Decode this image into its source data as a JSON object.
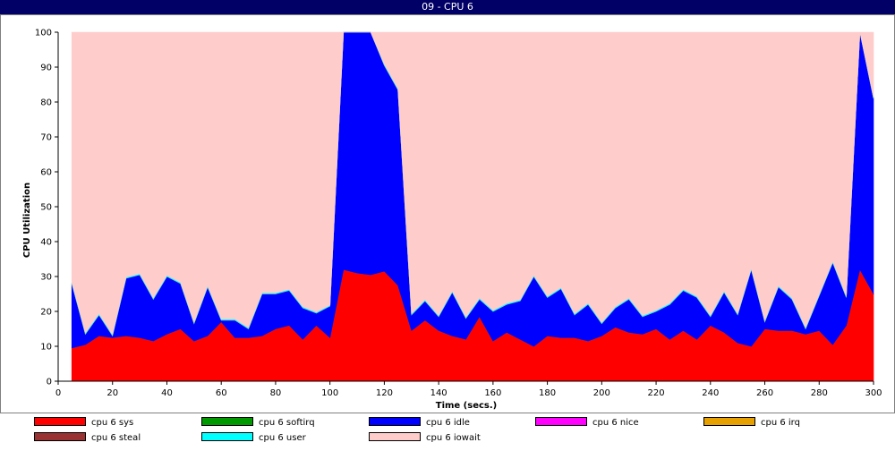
{
  "window": {
    "title": "09 - CPU 6"
  },
  "chart_data": {
    "type": "area",
    "stacked": true,
    "title": "09 - CPU 6",
    "xlabel": "Time (secs.)",
    "ylabel": "CPU Utilization",
    "xlim": [
      0,
      300
    ],
    "ylim": [
      0,
      100
    ],
    "x_ticks": [
      0,
      20,
      40,
      60,
      80,
      100,
      120,
      140,
      160,
      180,
      200,
      220,
      240,
      260,
      280,
      300
    ],
    "y_ticks": [
      0,
      10,
      20,
      30,
      40,
      50,
      60,
      70,
      80,
      90,
      100
    ],
    "legend_position": "bottom",
    "x": [
      5,
      10,
      15,
      20,
      25,
      30,
      35,
      40,
      45,
      50,
      55,
      60,
      65,
      70,
      75,
      80,
      85,
      90,
      95,
      100,
      105,
      110,
      115,
      120,
      125,
      130,
      135,
      140,
      145,
      150,
      155,
      160,
      165,
      170,
      175,
      180,
      185,
      190,
      195,
      200,
      205,
      210,
      215,
      220,
      225,
      230,
      235,
      240,
      245,
      250,
      255,
      260,
      265,
      270,
      275,
      280,
      285,
      290,
      295,
      300
    ],
    "series": [
      {
        "name": "cpu 6 sys",
        "color": "#ff0000",
        "values": [
          9.5,
          10.5,
          13,
          12.5,
          13,
          12.5,
          11.5,
          13.5,
          15,
          11.5,
          13,
          17,
          12.5,
          12.5,
          13,
          15,
          16,
          12,
          16,
          12.5,
          32,
          31,
          30.5,
          31.5,
          27.5,
          14.5,
          17.5,
          14.5,
          13,
          12,
          18.5,
          11.5,
          14,
          12,
          10,
          13,
          12.5,
          12.5,
          11.5,
          13,
          15.5,
          14,
          13.5,
          15,
          12,
          14.5,
          12,
          16,
          14,
          11,
          10,
          15,
          14.5,
          14.5,
          13.5,
          14.5,
          10.5,
          16,
          32,
          25
        ]
      },
      {
        "name": "cpu 6 softirq",
        "color": "#009900",
        "values": [
          0,
          0,
          0,
          0,
          0,
          0,
          0,
          0,
          0,
          0,
          0,
          0,
          0,
          0,
          0,
          0,
          0,
          0,
          0,
          0,
          0,
          0,
          0,
          0,
          0,
          0,
          0,
          0,
          0,
          0,
          0,
          0,
          0,
          0,
          0,
          0,
          0,
          0,
          0,
          0,
          0,
          0,
          0,
          0,
          0,
          0,
          0,
          0,
          0,
          0,
          0,
          0,
          0,
          0,
          0,
          0,
          0,
          0,
          0,
          0
        ]
      },
      {
        "name": "cpu 6 idle",
        "color": "#0000ff",
        "values": [
          18.5,
          3,
          6,
          0.5,
          16.5,
          18,
          12,
          16.5,
          13,
          5,
          14,
          0.5,
          5,
          2.5,
          12,
          10,
          10,
          9,
          3.5,
          9,
          68,
          69,
          69.5,
          59,
          56,
          4.5,
          5.5,
          4,
          12.5,
          6,
          5,
          8.5,
          8,
          11,
          20,
          11,
          14,
          6.5,
          10.5,
          3.5,
          5.5,
          9.5,
          5,
          5,
          10,
          11.5,
          12,
          2.5,
          11.5,
          8,
          22,
          2,
          12.5,
          9,
          1.5,
          10,
          23.5,
          8,
          68,
          56
        ]
      },
      {
        "name": "cpu 6 nice",
        "color": "#ff00ff",
        "values": [
          0,
          0,
          0,
          0,
          0,
          0,
          0,
          0,
          0,
          0,
          0,
          0,
          0,
          0,
          0,
          0,
          0,
          0,
          0,
          0,
          0,
          0,
          0,
          0,
          0,
          0,
          0,
          0,
          0,
          0,
          0,
          0,
          0,
          0,
          0,
          0,
          0,
          0,
          0,
          0,
          0,
          0,
          0,
          0,
          0,
          0,
          0,
          0,
          0,
          0,
          0,
          0,
          0,
          0,
          0,
          0,
          0,
          0,
          0,
          0
        ]
      },
      {
        "name": "cpu 6 irq",
        "color": "#e6a000",
        "values": [
          0,
          0,
          0,
          0,
          0,
          0,
          0,
          0,
          0,
          0,
          0,
          0,
          0,
          0,
          0,
          0,
          0,
          0,
          0,
          0,
          0,
          0,
          0,
          0,
          0,
          0,
          0,
          0,
          0,
          0,
          0,
          0,
          0,
          0,
          0,
          0,
          0,
          0,
          0,
          0,
          0,
          0,
          0,
          0,
          0,
          0,
          0,
          0,
          0,
          0,
          0,
          0,
          0,
          0,
          0,
          0,
          0,
          0,
          0,
          0
        ]
      },
      {
        "name": "cpu 6 steal",
        "color": "#993333",
        "values": [
          0,
          0,
          0,
          0,
          0,
          0,
          0,
          0,
          0,
          0,
          0,
          0,
          0,
          0,
          0,
          0,
          0,
          0,
          0,
          0,
          0,
          0,
          0,
          0,
          0,
          0,
          0,
          0,
          0,
          0,
          0,
          0,
          0,
          0,
          0,
          0,
          0,
          0,
          0,
          0,
          0,
          0,
          0,
          0,
          0,
          0,
          0,
          0,
          0,
          0,
          0,
          0,
          0,
          0,
          0,
          0,
          0,
          0,
          0,
          0
        ]
      },
      {
        "name": "cpu 6 user",
        "color": "#00ffff",
        "values": [
          0.3,
          0.3,
          0.3,
          0.3,
          0.3,
          0.3,
          0.3,
          0.3,
          0.3,
          0.3,
          0.3,
          0.3,
          0.3,
          0.3,
          0.3,
          0.3,
          0.3,
          0.3,
          0.3,
          0.3,
          0.3,
          0.3,
          0.3,
          0.3,
          0.3,
          0.3,
          0.3,
          0.3,
          0.3,
          0.3,
          0.3,
          0.3,
          0.3,
          0.3,
          0.3,
          0.3,
          0.3,
          0.3,
          0.3,
          0.3,
          0.3,
          0.3,
          0.3,
          0.3,
          0.3,
          0.3,
          0.3,
          0.3,
          0.3,
          0.3,
          0.3,
          0.3,
          0.3,
          0.3,
          0.3,
          0.3,
          0.3,
          0.3,
          0.3,
          0.3
        ]
      },
      {
        "name": "cpu 6 iowait",
        "color": "#ffcccc",
        "fill_to_top": true
      }
    ]
  }
}
